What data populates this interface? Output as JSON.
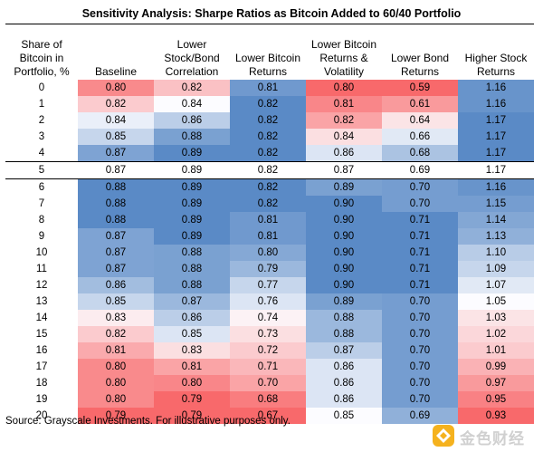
{
  "chart_data": {
    "type": "table",
    "title": "Sensitivity Analysis: Sharpe Ratios as Bitcoin Added to 60/40 Portfolio",
    "columns": [
      {
        "key": "share",
        "label": "Share of Bitcoin in Portfolio, %"
      },
      {
        "key": "baseline",
        "label": "Baseline"
      },
      {
        "key": "lower_corr",
        "label": "Lower Stock/Bond Correlation"
      },
      {
        "key": "lower_btc",
        "label": "Lower Bitcoin Returns"
      },
      {
        "key": "lower_btc_vol",
        "label": "Lower Bitcoin Returns & Volatility"
      },
      {
        "key": "lower_bond",
        "label": "Lower Bond Returns"
      },
      {
        "key": "higher_stock",
        "label": "Higher Stock Returns"
      }
    ],
    "rows": [
      {
        "share": "0",
        "values": [
          "0.80",
          "0.82",
          "0.81",
          "0.80",
          "0.59",
          "1.16"
        ]
      },
      {
        "share": "1",
        "values": [
          "0.82",
          "0.84",
          "0.82",
          "0.81",
          "0.61",
          "1.16"
        ]
      },
      {
        "share": "2",
        "values": [
          "0.84",
          "0.86",
          "0.82",
          "0.82",
          "0.64",
          "1.17"
        ]
      },
      {
        "share": "3",
        "values": [
          "0.85",
          "0.88",
          "0.82",
          "0.84",
          "0.66",
          "1.17"
        ]
      },
      {
        "share": "4",
        "values": [
          "0.87",
          "0.89",
          "0.82",
          "0.86",
          "0.68",
          "1.17"
        ]
      },
      {
        "share": "5",
        "values": [
          "0.87",
          "0.89",
          "0.82",
          "0.87",
          "0.69",
          "1.17"
        ],
        "highlight": true
      },
      {
        "share": "6",
        "values": [
          "0.88",
          "0.89",
          "0.82",
          "0.89",
          "0.70",
          "1.16"
        ]
      },
      {
        "share": "7",
        "values": [
          "0.88",
          "0.89",
          "0.82",
          "0.90",
          "0.70",
          "1.15"
        ]
      },
      {
        "share": "8",
        "values": [
          "0.88",
          "0.89",
          "0.81",
          "0.90",
          "0.71",
          "1.14"
        ]
      },
      {
        "share": "9",
        "values": [
          "0.87",
          "0.89",
          "0.81",
          "0.90",
          "0.71",
          "1.13"
        ]
      },
      {
        "share": "10",
        "values": [
          "0.87",
          "0.88",
          "0.80",
          "0.90",
          "0.71",
          "1.10"
        ]
      },
      {
        "share": "11",
        "values": [
          "0.87",
          "0.88",
          "0.79",
          "0.90",
          "0.71",
          "1.09"
        ]
      },
      {
        "share": "12",
        "values": [
          "0.86",
          "0.88",
          "0.77",
          "0.90",
          "0.71",
          "1.07"
        ]
      },
      {
        "share": "13",
        "values": [
          "0.85",
          "0.87",
          "0.76",
          "0.89",
          "0.70",
          "1.05"
        ]
      },
      {
        "share": "14",
        "values": [
          "0.83",
          "0.86",
          "0.74",
          "0.88",
          "0.70",
          "1.03"
        ]
      },
      {
        "share": "15",
        "values": [
          "0.82",
          "0.85",
          "0.73",
          "0.88",
          "0.70",
          "1.02"
        ]
      },
      {
        "share": "16",
        "values": [
          "0.81",
          "0.83",
          "0.72",
          "0.87",
          "0.70",
          "1.01"
        ]
      },
      {
        "share": "17",
        "values": [
          "0.80",
          "0.81",
          "0.71",
          "0.86",
          "0.70",
          "0.99"
        ]
      },
      {
        "share": "18",
        "values": [
          "0.80",
          "0.80",
          "0.70",
          "0.86",
          "0.70",
          "0.97"
        ]
      },
      {
        "share": "19",
        "values": [
          "0.80",
          "0.79",
          "0.68",
          "0.86",
          "0.70",
          "0.95"
        ]
      },
      {
        "share": "20",
        "values": [
          "0.79",
          "0.79",
          "0.67",
          "0.85",
          "0.69",
          "0.93"
        ]
      }
    ],
    "color_scale": {
      "low": "#f8696b",
      "mid": "#fcfcff",
      "high": "#5a8ac6"
    }
  },
  "source": "Source: Grayscale Investments. For illustrative purposes only.",
  "watermark": {
    "text": "金色财经",
    "icon": "gold-diamond-logo-icon",
    "color": "#f5b21e"
  }
}
